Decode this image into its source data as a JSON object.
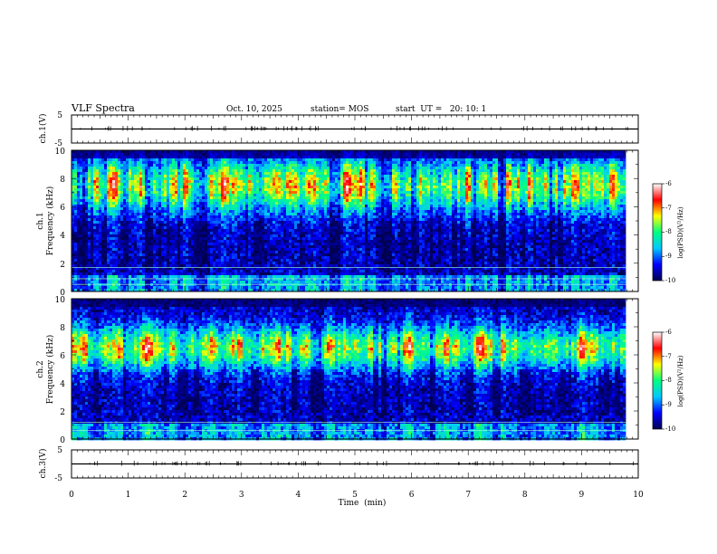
{
  "chart_data": {
    "type": "heatmap",
    "title": "VLF Spectra",
    "header": {
      "date": "Oct. 10, 2025",
      "station": "station= MOS",
      "start_time": "start  UT =   20: 10: 1"
    },
    "x_axis": {
      "label": "Time  (min)",
      "range": [
        0,
        10
      ],
      "ticks": [
        "0",
        "1",
        "2",
        "3",
        "4",
        "5",
        "6",
        "7",
        "8",
        "9",
        "10"
      ],
      "data_extent_min": 9.8
    },
    "panels": [
      {
        "id": "ch1-voltage",
        "type": "line",
        "ylabel": "ch.1(V)",
        "ylim": [
          -5,
          5
        ],
        "yticks": [
          "5",
          "-5"
        ],
        "baseline_value": 0
      },
      {
        "id": "ch1-spectrogram",
        "type": "heatmap",
        "ylabel_top": "ch.1",
        "ylabel": "Frequency  (kHz)",
        "ylim": [
          0,
          10
        ],
        "yticks": [
          "0",
          "2",
          "4",
          "6",
          "8",
          "10"
        ],
        "band_center_khz": 7.5,
        "hline_khz": [
          0.5,
          0.9,
          1.7
        ]
      },
      {
        "id": "ch2-spectrogram",
        "type": "heatmap",
        "ylabel_top": "ch.2",
        "ylabel": "Frequency  (kHz)",
        "ylim": [
          0,
          10
        ],
        "yticks": [
          "0",
          "2",
          "4",
          "6",
          "8",
          "10"
        ],
        "band_center_khz": 6.5,
        "hline_khz": [
          0.6,
          1.2
        ]
      },
      {
        "id": "ch3-voltage",
        "type": "line",
        "ylabel": "ch.3(V)",
        "ylim": [
          -5,
          5
        ],
        "yticks": [
          "5",
          "-5"
        ],
        "baseline_value": 0
      }
    ],
    "colorbar": {
      "label": "log(PSD)(V²/Hz)",
      "range": [
        -10,
        -6
      ],
      "ticks": [
        "-6",
        "-7",
        "-8",
        "-9",
        "-10"
      ],
      "colors": [
        "#000050",
        "#0000ff",
        "#00c8ff",
        "#00ff80",
        "#ffff00",
        "#ff0000",
        "#ffffff"
      ]
    }
  }
}
